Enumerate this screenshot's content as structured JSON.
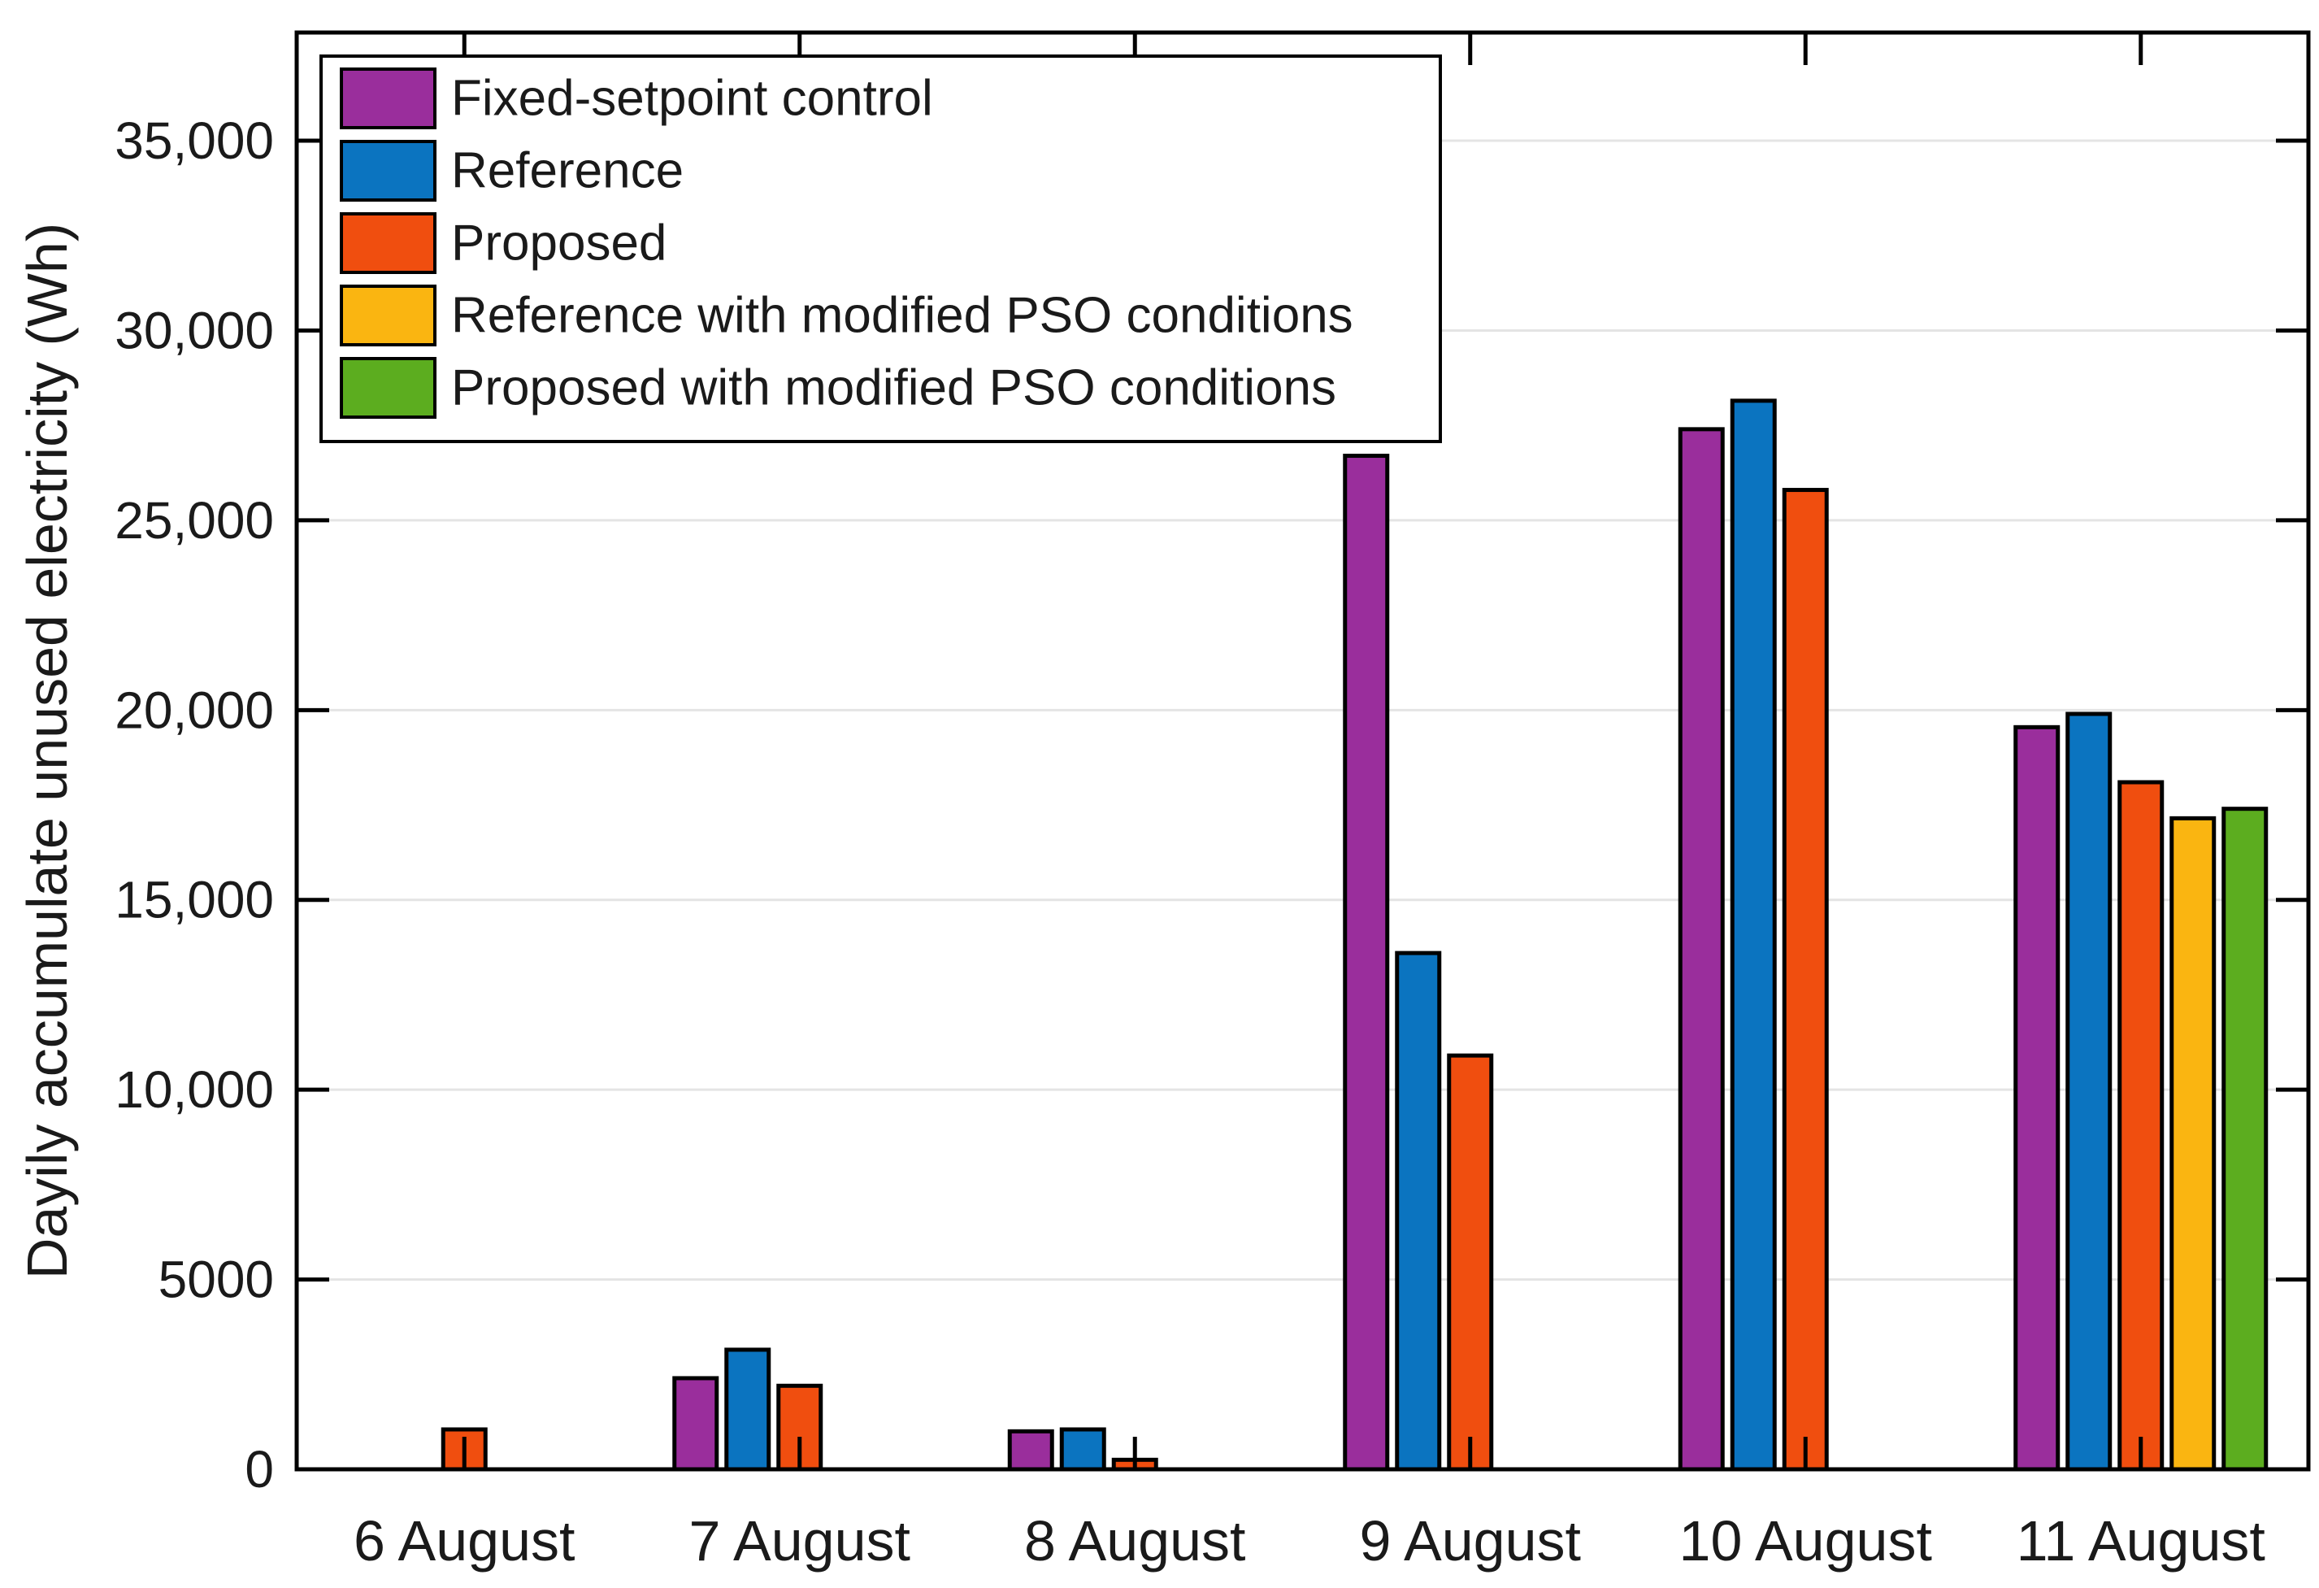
{
  "figure": {
    "background": "#FFFFFF"
  },
  "chart_data": {
    "type": "bar",
    "title": "",
    "xlabel": "",
    "ylabel": "Dayily accumulate unused electricity (Wh)",
    "categories": [
      "6 August",
      "7 August",
      "8 August",
      "9 August",
      "10 August",
      "11 August"
    ],
    "series": [
      {
        "name": "Fixed-setpoint control",
        "color": "#9A2E9C",
        "values": [
          0,
          2400,
          1000,
          26700,
          27400,
          19550
        ]
      },
      {
        "name": "Reference",
        "color": "#0B74C0",
        "values": [
          0,
          3150,
          1050,
          13600,
          28150,
          19900
        ]
      },
      {
        "name": "Proposed",
        "color": "#F04E0F",
        "values": [
          1050,
          2200,
          250,
          10900,
          25800,
          18100
        ]
      },
      {
        "name": "Reference with modified PSO conditions",
        "color": "#FAB511",
        "values": [
          0,
          0,
          0,
          0,
          0,
          17150
        ]
      },
      {
        "name": "Proposed with modified PSO conditions",
        "color": "#5CAD1F",
        "values": [
          0,
          0,
          0,
          0,
          0,
          17400
        ]
      }
    ],
    "ylim": [
      0,
      37850
    ],
    "y_ticks": [
      {
        "value": 0,
        "label": "0"
      },
      {
        "value": 5000,
        "label": "5000"
      },
      {
        "value": 10000,
        "label": "10,000"
      },
      {
        "value": 15000,
        "label": "15,000"
      },
      {
        "value": 20000,
        "label": "20,000"
      },
      {
        "value": 25000,
        "label": "25,000"
      },
      {
        "value": 30000,
        "label": "30,000"
      },
      {
        "value": 35000,
        "label": "35,000"
      }
    ],
    "grid": {
      "horizontal": true,
      "vertical": false,
      "color": "#E4E4E4"
    },
    "legend_position": "top-left-inside",
    "axis_color": "#000000",
    "bar_edge_color": "#000000"
  }
}
